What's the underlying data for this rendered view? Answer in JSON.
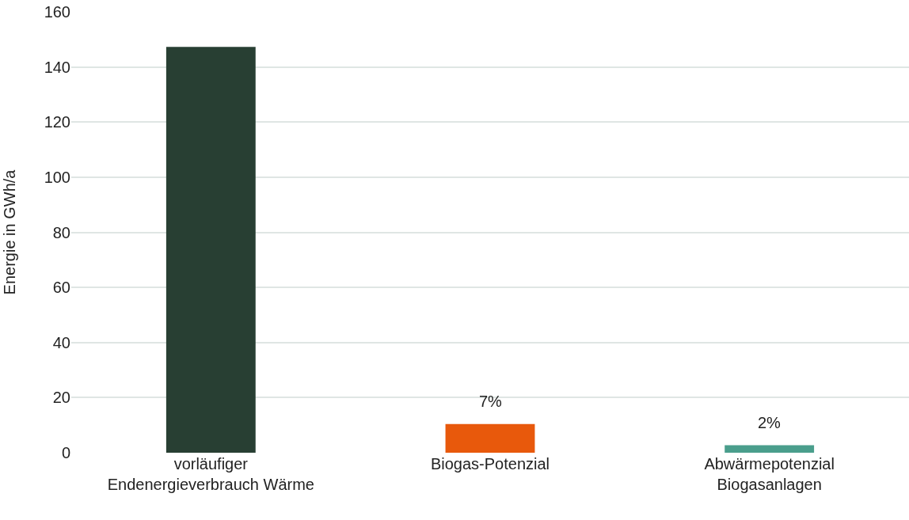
{
  "chart_data": {
    "type": "bar",
    "ylabel": "Energie in GWh/a",
    "categories": [
      "vorläufiger\nEndenergieverbrauch Wärme",
      "Biogas-Potenzial",
      "Abwärmepotenzial\nBiogasanlagen"
    ],
    "values": [
      147.3,
      10.4,
      2.7
    ],
    "colors": [
      "#283f33",
      "#e8590c",
      "#4a9e8c"
    ],
    "annotations": [
      {
        "text": "7%",
        "x": "Biogas-Potenzial",
        "y": 10.4
      },
      {
        "text": "2%",
        "x": "Abwärmepotenzial\nBiogasanlagen",
        "y": 2.7
      }
    ],
    "ylim": [
      0,
      160
    ],
    "yticks": [
      0,
      20,
      40,
      60,
      80,
      100,
      120,
      140,
      160
    ],
    "grid": "y"
  }
}
